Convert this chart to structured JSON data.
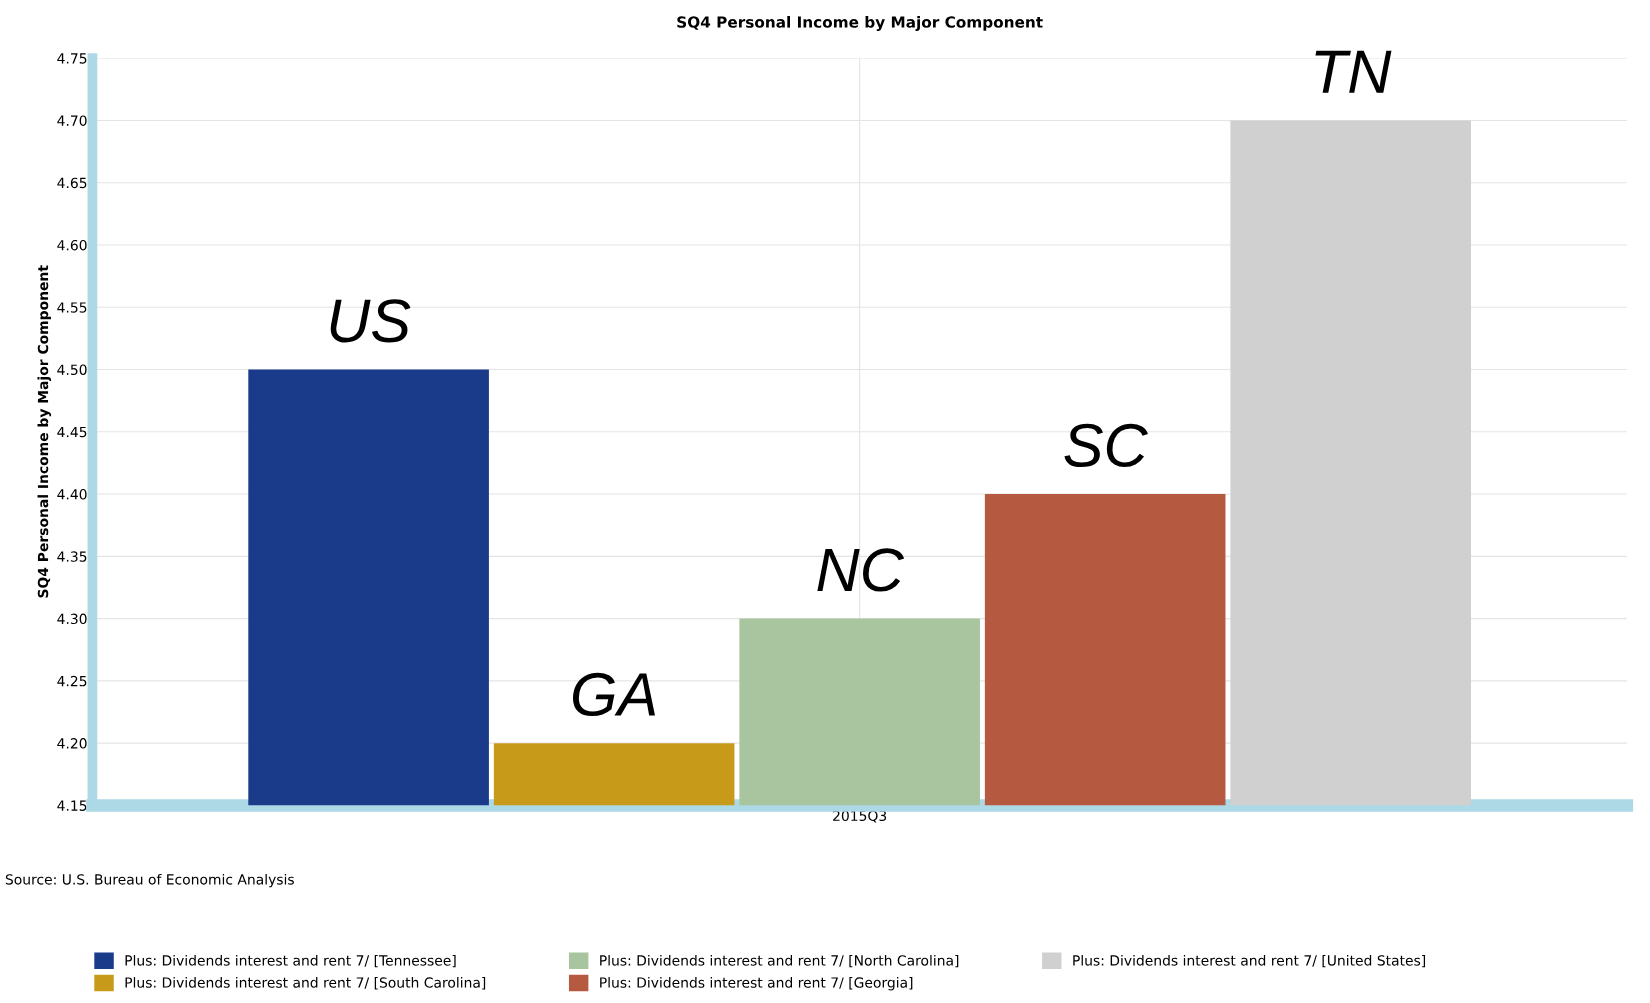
{
  "chart_data": {
    "type": "bar",
    "title": "SQ4 Personal Income by Major Component",
    "ylabel": "SQ4 Personal Income by Major Component",
    "categories": [
      "2015Q3"
    ],
    "series": [
      {
        "name": "Plus: Dividends interest and rent 7/ [Tennessee]",
        "color": "#1a3a8a",
        "values": [
          4.5
        ]
      },
      {
        "name": "Plus: Dividends interest and rent 7/ [South Carolina]",
        "color": "#c89a1a",
        "values": [
          4.2
        ]
      },
      {
        "name": "Plus: Dividends interest and rent 7/ [North Carolina]",
        "color": "#a8c5a0",
        "values": [
          4.3
        ]
      },
      {
        "name": "Plus: Dividends interest and rent 7/ [Georgia]",
        "color": "#b55a40",
        "values": [
          4.4
        ]
      },
      {
        "name": "Plus: Dividends interest and rent 7/ [United States]",
        "color": "#d0d0d0",
        "values": [
          4.7
        ]
      }
    ],
    "ylim": [
      4.15,
      4.75
    ],
    "yticks": [
      {
        "value": 4.15,
        "label": "4.15"
      },
      {
        "value": 4.2,
        "label": "4.20"
      },
      {
        "value": 4.25,
        "label": "4.25"
      },
      {
        "value": 4.3,
        "label": "4.30"
      },
      {
        "value": 4.35,
        "label": "4.35"
      },
      {
        "value": 4.4,
        "label": "4.40"
      },
      {
        "value": 4.45,
        "label": "4.45"
      },
      {
        "value": 4.5,
        "label": "4.50"
      },
      {
        "value": 4.55,
        "label": "4.55"
      },
      {
        "value": 4.6,
        "label": "4.60"
      },
      {
        "value": 4.65,
        "label": "4.65"
      },
      {
        "value": 4.7,
        "label": "4.70"
      },
      {
        "value": 4.75,
        "label": "4.75"
      }
    ],
    "annotations": [
      "US",
      "GA",
      "NC",
      "SC",
      "TN",
      "Source: U.S. Bureau of Economic Analysis"
    ],
    "grid": true,
    "legend": "bottom"
  }
}
